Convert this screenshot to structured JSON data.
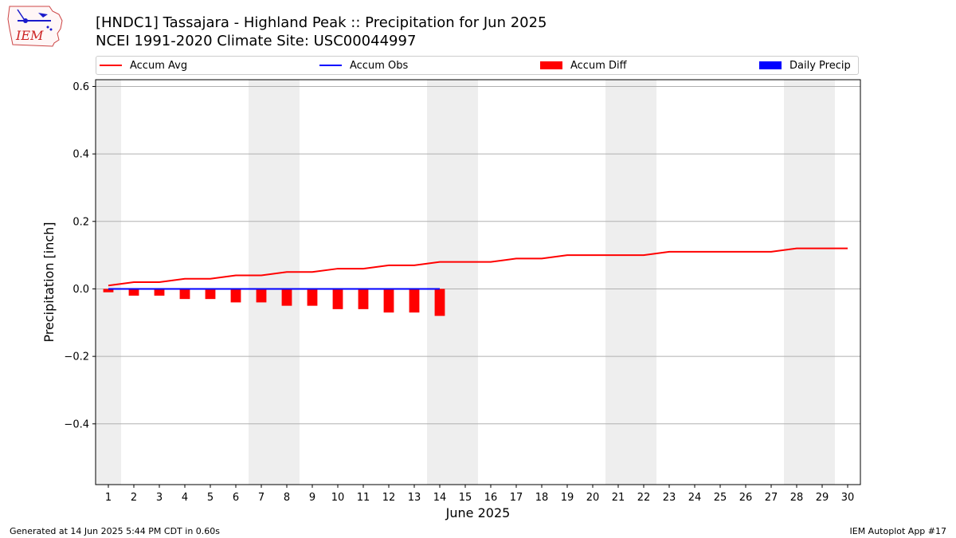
{
  "header": {
    "logo_text": "IEM",
    "title_line1": "[HNDC1] Tassajara - Highland Peak :: Precipitation for Jun 2025",
    "title_line2": "NCEI 1991-2020 Climate Site: USC00044997"
  },
  "legend": {
    "items": [
      {
        "label": "Accum Avg",
        "color": "#ff0000",
        "kind": "line"
      },
      {
        "label": "Accum Obs",
        "color": "#0000ff",
        "kind": "line"
      },
      {
        "label": "Accum Diff",
        "color": "#ff0000",
        "kind": "box"
      },
      {
        "label": "Daily Precip",
        "color": "#0000ff",
        "kind": "box"
      }
    ]
  },
  "footer": {
    "left": "Generated at 14 Jun 2025 5:44 PM CDT in 0.60s",
    "right": "IEM Autoplot App #17"
  },
  "chart_data": {
    "type": "line",
    "xlabel": "June 2025",
    "ylabel": "Precipitation [inch]",
    "xlim": [
      0.5,
      30.5
    ],
    "ylim": [
      -0.58,
      0.62
    ],
    "x_ticks": [
      1,
      2,
      3,
      4,
      5,
      6,
      7,
      8,
      9,
      10,
      11,
      12,
      13,
      14,
      15,
      16,
      17,
      18,
      19,
      20,
      21,
      22,
      23,
      24,
      25,
      26,
      27,
      28,
      29,
      30
    ],
    "y_ticks": [
      -0.4,
      -0.2,
      0.0,
      0.2,
      0.4,
      0.6
    ],
    "y_tick_labels": [
      "−0.4",
      "−0.2",
      "0.0",
      "0.2",
      "0.4",
      "0.6"
    ],
    "grid": "horizontal",
    "weekend_shading": [
      [
        0.5,
        1.5
      ],
      [
        6.5,
        8.5
      ],
      [
        13.5,
        15.5
      ],
      [
        20.5,
        22.5
      ],
      [
        27.5,
        29.5
      ]
    ],
    "series": [
      {
        "name": "Accum Avg",
        "kind": "line",
        "color": "#ff0000",
        "x": [
          1,
          2,
          3,
          4,
          5,
          6,
          7,
          8,
          9,
          10,
          11,
          12,
          13,
          14,
          15,
          16,
          17,
          18,
          19,
          20,
          21,
          22,
          23,
          24,
          25,
          26,
          27,
          28,
          29,
          30
        ],
        "values": [
          0.01,
          0.02,
          0.02,
          0.03,
          0.03,
          0.04,
          0.04,
          0.05,
          0.05,
          0.06,
          0.06,
          0.07,
          0.07,
          0.08,
          0.08,
          0.08,
          0.09,
          0.09,
          0.1,
          0.1,
          0.1,
          0.1,
          0.11,
          0.11,
          0.11,
          0.11,
          0.11,
          0.12,
          0.12,
          0.12
        ]
      },
      {
        "name": "Accum Obs",
        "kind": "line",
        "color": "#0000ff",
        "x": [
          1,
          2,
          3,
          4,
          5,
          6,
          7,
          8,
          9,
          10,
          11,
          12,
          13,
          14
        ],
        "values": [
          0,
          0,
          0,
          0,
          0,
          0,
          0,
          0,
          0,
          0,
          0,
          0,
          0,
          0
        ]
      },
      {
        "name": "Accum Diff",
        "kind": "bar",
        "color": "#ff0000",
        "x": [
          1,
          2,
          3,
          4,
          5,
          6,
          7,
          8,
          9,
          10,
          11,
          12,
          13,
          14
        ],
        "values": [
          -0.01,
          -0.02,
          -0.02,
          -0.03,
          -0.03,
          -0.04,
          -0.04,
          -0.05,
          -0.05,
          -0.06,
          -0.06,
          -0.07,
          -0.07,
          -0.08
        ]
      },
      {
        "name": "Daily Precip",
        "kind": "bar",
        "color": "#0000ff",
        "x": [
          1,
          2,
          3,
          4,
          5,
          6,
          7,
          8,
          9,
          10,
          11,
          12,
          13,
          14
        ],
        "values": [
          0,
          0,
          0,
          0,
          0,
          0,
          0,
          0,
          0,
          0,
          0,
          0,
          0,
          0
        ]
      }
    ]
  }
}
